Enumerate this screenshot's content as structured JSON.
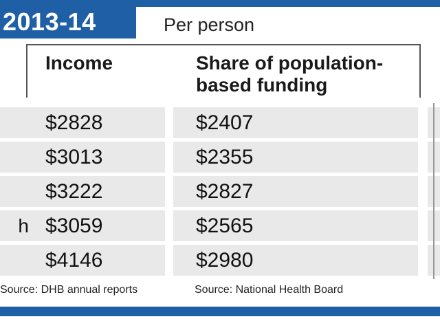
{
  "header": {
    "year": "2013-14",
    "subtitle": "Per person"
  },
  "chart_data": {
    "type": "table",
    "columns": [
      "Income",
      "Share of population-based funding"
    ],
    "rows": [
      {
        "label": "",
        "values": [
          "$2828",
          "$2407"
        ]
      },
      {
        "label": "",
        "values": [
          "$3013",
          "$2355"
        ]
      },
      {
        "label": "",
        "values": [
          "$3222",
          "$2827"
        ]
      },
      {
        "label": "h",
        "values": [
          "$3059",
          "$2565"
        ]
      },
      {
        "label": "",
        "values": [
          "$4146",
          "$2980"
        ]
      }
    ]
  },
  "sources": {
    "left": "Source: DHB annual reports",
    "right": "Source: National Health Board"
  },
  "colors": {
    "accent": "#1f5fa6",
    "row_fill": "#e9e9e9"
  }
}
